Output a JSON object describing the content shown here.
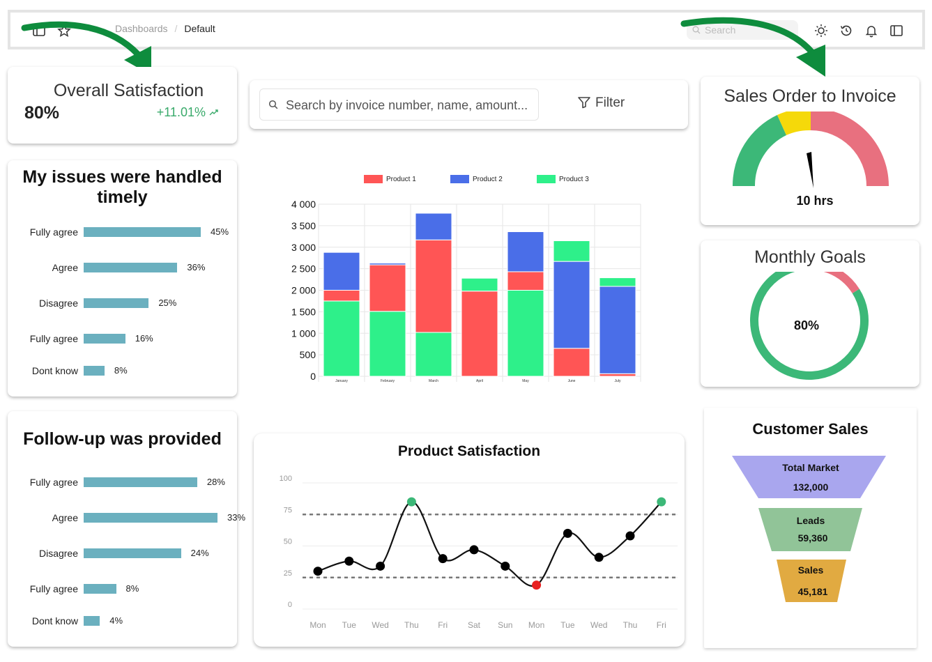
{
  "topbar": {
    "breadcrumb_parent": "Dashboards",
    "breadcrumb_current": "Default",
    "search_placeholder": "Search"
  },
  "overall": {
    "title": "Overall Satisfaction",
    "value": "80%",
    "delta": "+11.01%"
  },
  "survey1": {
    "title_line1": "My issues were handled",
    "title_line2": "timely",
    "rows": [
      {
        "label": "Fully agree",
        "pct": "45%",
        "value": 45
      },
      {
        "label": "Agree",
        "pct": "36%",
        "value": 36
      },
      {
        "label": "Disagree",
        "pct": "25%",
        "value": 25
      },
      {
        "label": "Fully agree",
        "pct": "16%",
        "value": 16
      },
      {
        "label": "Dont know",
        "pct": "8%",
        "value": 8
      }
    ]
  },
  "survey2": {
    "title": "Follow-up was provided",
    "rows": [
      {
        "label": "Fully agree",
        "pct": "28%",
        "value": 28
      },
      {
        "label": "Agree",
        "pct": "33%",
        "value": 33
      },
      {
        "label": "Disagree",
        "pct": "24%",
        "value": 24
      },
      {
        "label": "Fully agree",
        "pct": "8%",
        "value": 8
      },
      {
        "label": "Dont know",
        "pct": "4%",
        "value": 4
      }
    ]
  },
  "search": {
    "placeholder": "Search by invoice number, name, amount...",
    "filter_label": "Filter"
  },
  "gauge": {
    "title": "Sales Order to Invoice",
    "value_label": "10 hrs"
  },
  "goals": {
    "title": "Monthly Goals",
    "value_label": "80%",
    "value": 80
  },
  "customer_sales": {
    "title": "Customer Sales",
    "stages": [
      {
        "label": "Total Market",
        "value": "132,000"
      },
      {
        "label": "Leads",
        "value": "59,360"
      },
      {
        "label": "Sales",
        "value": "45,181"
      }
    ]
  },
  "colors": {
    "product1": "#ff5555",
    "product2": "#4a6ee8",
    "product3": "#2ef08a",
    "survey_bar": "#6bb0bf",
    "gauge_green": "#3cb878",
    "gauge_yellow": "#f5d90a",
    "gauge_red": "#e8707f",
    "funnel_top": "#a9a6ee",
    "funnel_mid": "#91c498",
    "funnel_bottom": "#e1aa41"
  },
  "chart_data": [
    {
      "type": "bar",
      "stacked": true,
      "categories": [
        "January",
        "February",
        "March",
        "April",
        "May",
        "June",
        "July"
      ],
      "series": [
        {
          "name": "Product 3",
          "values": [
            1750,
            1510,
            1020,
            0,
            2000,
            0,
            0
          ]
        },
        {
          "name": "Product 1",
          "values": [
            250,
            1080,
            2150,
            1980,
            430,
            650,
            60
          ]
        },
        {
          "name": "Product 2",
          "values": [
            880,
            40,
            620,
            0,
            930,
            2020,
            2030
          ]
        },
        {
          "name": "Product 3 (top)",
          "values": [
            0,
            0,
            0,
            300,
            0,
            480,
            200
          ]
        }
      ],
      "legend": [
        "Product 1",
        "Product 2",
        "Product 3"
      ],
      "y_ticks": [
        "4 000",
        "3 500",
        "3 000",
        "2 500",
        "2 000",
        "1 500",
        "1 000",
        "500",
        "0"
      ],
      "ylim": [
        0,
        4000
      ],
      "title": "",
      "xlabel": "",
      "ylabel": ""
    },
    {
      "type": "line",
      "title": "Product Satisfaction",
      "categories": [
        "Mon",
        "Tue",
        "Wed",
        "Thu",
        "Fri",
        "Sat",
        "Sun",
        "Mon",
        "Tue",
        "Wed",
        "Thu",
        "Fri"
      ],
      "values": [
        30,
        38,
        34,
        85,
        40,
        47,
        34,
        19,
        60,
        41,
        58,
        85
      ],
      "ylim": [
        0,
        100
      ],
      "y_ticks": [
        "100",
        "75",
        "50",
        "25",
        "0"
      ],
      "thresholds": [
        75,
        25
      ]
    }
  ]
}
